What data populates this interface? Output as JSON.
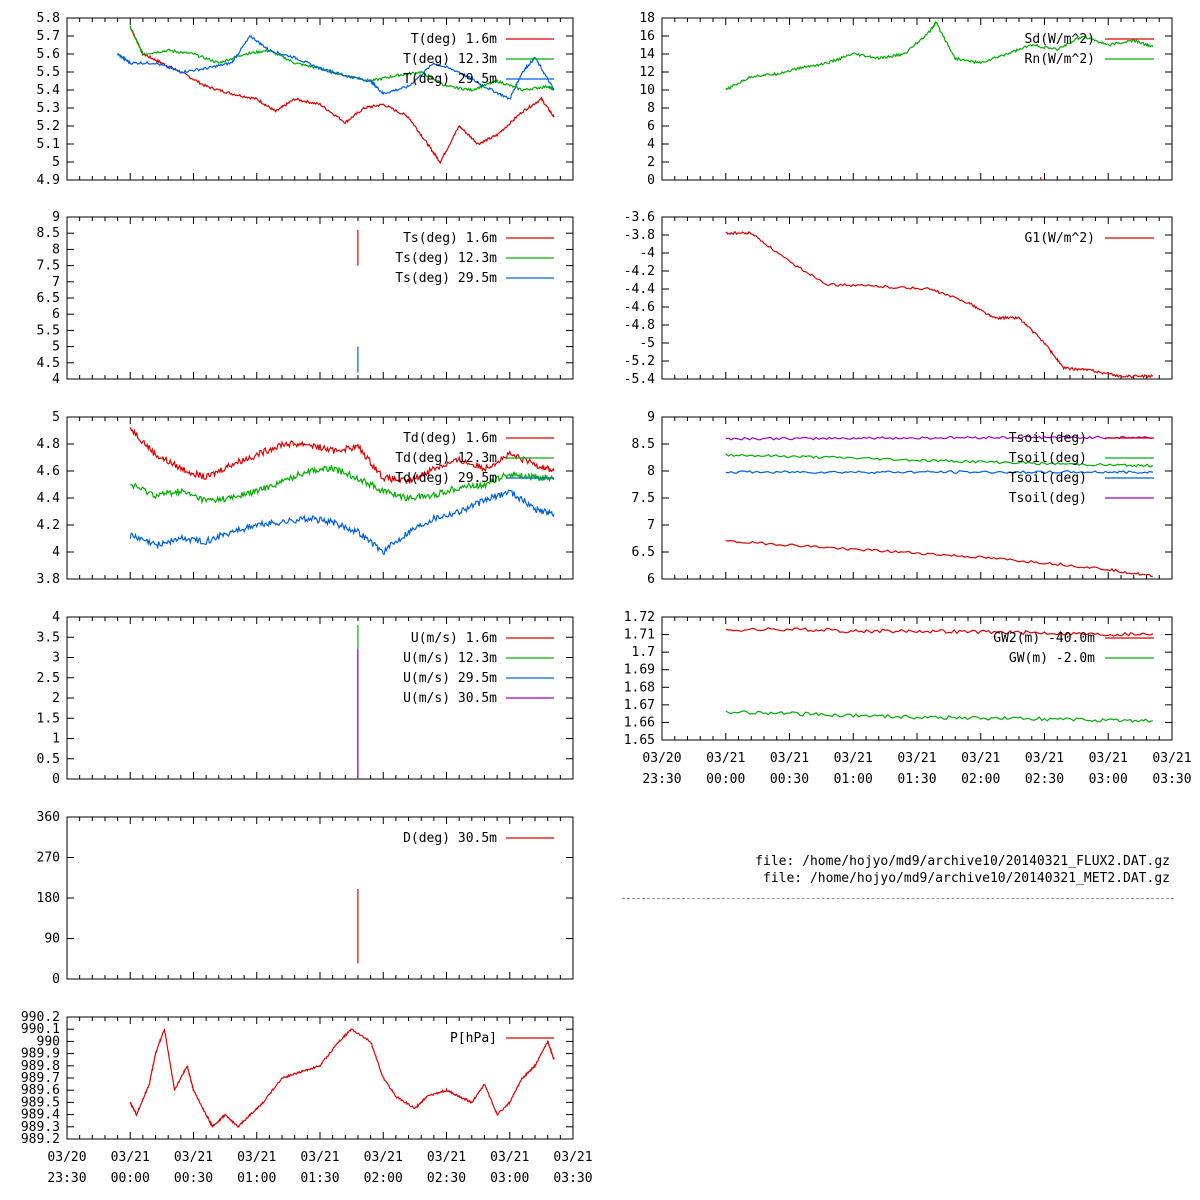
{
  "chart_data": [
    {
      "type": "line",
      "ylim": [
        4.9,
        5.8
      ],
      "yticks": [
        "4.9",
        "5",
        "5.1",
        "5.2",
        "5.3",
        "5.4",
        "5.5",
        "5.6",
        "5.7",
        "5.8"
      ],
      "xlim": [
        -0.5,
        3.5
      ],
      "series": [
        {
          "name": "T(deg)  1.6m",
          "color": "#e00000",
          "x": [
            0,
            0.1,
            0.25,
            0.4,
            0.6,
            0.8,
            1.0,
            1.15,
            1.3,
            1.5,
            1.7,
            1.85,
            2.0,
            2.2,
            2.35,
            2.45,
            2.6,
            2.75,
            2.9,
            3.1,
            3.25,
            3.35
          ],
          "y": [
            5.75,
            5.6,
            5.55,
            5.5,
            5.42,
            5.38,
            5.35,
            5.28,
            5.35,
            5.32,
            5.22,
            5.3,
            5.32,
            5.25,
            5.1,
            5.0,
            5.2,
            5.1,
            5.15,
            5.28,
            5.35,
            5.25
          ]
        },
        {
          "name": "T(deg) 12.3m",
          "color": "#00b000",
          "x": [
            0,
            0.1,
            0.3,
            0.5,
            0.7,
            0.9,
            1.1,
            1.3,
            1.5,
            1.7,
            1.9,
            2.1,
            2.3,
            2.5,
            2.7,
            2.9,
            3.1,
            3.3,
            3.35
          ],
          "y": [
            5.75,
            5.6,
            5.62,
            5.6,
            5.55,
            5.6,
            5.62,
            5.55,
            5.52,
            5.48,
            5.45,
            5.48,
            5.5,
            5.42,
            5.4,
            5.45,
            5.4,
            5.42,
            5.4
          ]
        },
        {
          "name": "T(deg) 29.5m",
          "color": "#0060e0",
          "x": [
            -0.1,
            0.0,
            0.2,
            0.4,
            0.6,
            0.8,
            0.95,
            1.1,
            1.3,
            1.5,
            1.7,
            1.9,
            2.0,
            2.2,
            2.4,
            2.6,
            2.8,
            3.0,
            3.1,
            3.2,
            3.35
          ],
          "y": [
            5.6,
            5.55,
            5.55,
            5.5,
            5.52,
            5.55,
            5.7,
            5.62,
            5.58,
            5.52,
            5.48,
            5.45,
            5.38,
            5.42,
            5.55,
            5.5,
            5.42,
            5.35,
            5.5,
            5.58,
            5.4
          ]
        }
      ]
    },
    {
      "type": "line",
      "ylim": [
        0,
        18
      ],
      "yticks": [
        "0",
        "2",
        "4",
        "6",
        "8",
        "10",
        "12",
        "14",
        "16",
        "18"
      ],
      "xlim": [
        -0.5,
        3.5
      ],
      "series": [
        {
          "name": "Sd(W/m^2)",
          "color": "#e00000",
          "x": [
            2.47,
            2.47
          ],
          "y": [
            0,
            0.3
          ]
        },
        {
          "name": "Rn(W/m^2)",
          "color": "#00b000",
          "x": [
            0,
            0.2,
            0.4,
            0.6,
            0.8,
            1.0,
            1.2,
            1.4,
            1.6,
            1.65,
            1.8,
            2.0,
            2.2,
            2.4,
            2.6,
            2.8,
            3.0,
            3.2,
            3.35
          ],
          "y": [
            10,
            11.5,
            11.8,
            12.5,
            13,
            14,
            13.5,
            14,
            16.5,
            17.5,
            13.5,
            13,
            14,
            15,
            14.5,
            16,
            15,
            15.5,
            14.8
          ]
        }
      ]
    },
    {
      "type": "line",
      "ylim": [
        4,
        9
      ],
      "yticks": [
        "4",
        "4.5",
        "5",
        "5.5",
        "6",
        "6.5",
        "7",
        "7.5",
        "8",
        "8.5",
        "9"
      ],
      "xlim": [
        -0.5,
        3.5
      ],
      "series": [
        {
          "name": "Ts(deg)  1.6m",
          "color": "#e00000",
          "x": [
            1.8,
            1.8
          ],
          "y": [
            7.5,
            8.6
          ]
        },
        {
          "name": "Ts(deg) 12.3m",
          "color": "#00b000",
          "x": [],
          "y": []
        },
        {
          "name": "Ts(deg) 29.5m",
          "color": "#0060e0",
          "x": [
            1.8,
            1.8
          ],
          "y": [
            4.2,
            5.0
          ]
        }
      ]
    },
    {
      "type": "line",
      "ylim": [
        -5.4,
        -3.6
      ],
      "yticks": [
        "-5.4",
        "-5.2",
        "-5",
        "-4.8",
        "-4.6",
        "-4.4",
        "-4.2",
        "-4",
        "-3.8",
        "-3.6"
      ],
      "xlim": [
        -0.5,
        3.5
      ],
      "series": [
        {
          "name": "G1(W/m^2)",
          "color": "#e00000",
          "x": [
            0,
            0.2,
            0.5,
            0.8,
            1.2,
            1.6,
            1.9,
            2.1,
            2.3,
            2.5,
            2.65,
            2.85,
            3.1,
            3.35
          ],
          "y": [
            -3.78,
            -3.78,
            -4.1,
            -4.35,
            -4.37,
            -4.4,
            -4.55,
            -4.72,
            -4.72,
            -5.0,
            -5.28,
            -5.3,
            -5.37,
            -5.37
          ]
        }
      ]
    },
    {
      "type": "line",
      "ylim": [
        3.8,
        5
      ],
      "yticks": [
        "3.8",
        "4",
        "4.2",
        "4.4",
        "4.6",
        "4.8",
        "5"
      ],
      "xlim": [
        -0.5,
        3.5
      ],
      "series": [
        {
          "name": "Td(deg)  1.6m",
          "color": "#e00000",
          "x": [
            0,
            0.2,
            0.4,
            0.6,
            0.8,
            1.0,
            1.2,
            1.4,
            1.6,
            1.8,
            2.0,
            2.2,
            2.4,
            2.6,
            2.8,
            3.0,
            3.2,
            3.35
          ],
          "y": [
            4.92,
            4.72,
            4.62,
            4.55,
            4.65,
            4.72,
            4.8,
            4.8,
            4.75,
            4.78,
            4.55,
            4.52,
            4.62,
            4.68,
            4.62,
            4.72,
            4.65,
            4.6
          ]
        },
        {
          "name": "Td(deg) 12.3m",
          "color": "#00b000",
          "x": [
            0,
            0.2,
            0.4,
            0.6,
            0.8,
            1.0,
            1.2,
            1.4,
            1.6,
            1.8,
            2.0,
            2.2,
            2.4,
            2.6,
            2.8,
            3.0,
            3.2,
            3.35
          ],
          "y": [
            4.5,
            4.42,
            4.45,
            4.38,
            4.4,
            4.45,
            4.52,
            4.6,
            4.62,
            4.55,
            4.45,
            4.4,
            4.42,
            4.48,
            4.5,
            4.58,
            4.55,
            4.55
          ]
        },
        {
          "name": "Td(deg) 29.5m",
          "color": "#0060e0",
          "x": [
            0,
            0.2,
            0.4,
            0.6,
            0.8,
            1.0,
            1.2,
            1.4,
            1.6,
            1.8,
            2.0,
            2.2,
            2.4,
            2.6,
            2.8,
            3.0,
            3.2,
            3.35
          ],
          "y": [
            4.12,
            4.05,
            4.1,
            4.08,
            4.15,
            4.2,
            4.22,
            4.25,
            4.22,
            4.15,
            4.0,
            4.15,
            4.25,
            4.3,
            4.38,
            4.45,
            4.32,
            4.28
          ]
        }
      ]
    },
    {
      "type": "line",
      "ylim": [
        6,
        9
      ],
      "yticks": [
        "6",
        "6.5",
        "7",
        "7.5",
        "8",
        "8.5",
        "9"
      ],
      "xlim": [
        -0.5,
        3.5
      ],
      "series": [
        {
          "name": "Tsoil(deg)",
          "color": "#e00000",
          "x": [
            0,
            0.5,
            1.0,
            1.5,
            2.0,
            2.5,
            3.0,
            3.35
          ],
          "y": [
            6.7,
            6.63,
            6.55,
            6.48,
            6.4,
            6.3,
            6.18,
            6.05
          ]
        },
        {
          "name": "Tsoil(deg)",
          "color": "#00b000",
          "x": [
            0,
            0.5,
            1.0,
            1.5,
            2.0,
            2.5,
            3.0,
            3.35
          ],
          "y": [
            8.3,
            8.27,
            8.24,
            8.2,
            8.17,
            8.14,
            8.11,
            8.1
          ]
        },
        {
          "name": "Tsoil(deg)",
          "color": "#0060e0",
          "x": [
            0,
            0.5,
            1.0,
            1.5,
            2.0,
            2.5,
            3.0,
            3.35
          ],
          "y": [
            7.98,
            7.98,
            7.98,
            7.98,
            7.98,
            7.98,
            7.98,
            7.98
          ]
        },
        {
          "name": "Tsoil(deg)",
          "color": "#a000c0",
          "x": [
            0,
            0.5,
            1.0,
            1.5,
            2.0,
            2.5,
            3.0,
            3.35
          ],
          "y": [
            8.6,
            8.6,
            8.61,
            8.61,
            8.62,
            8.62,
            8.62,
            8.62
          ]
        }
      ]
    },
    {
      "type": "line",
      "ylim": [
        0,
        4
      ],
      "yticks": [
        "0",
        "0.5",
        "1",
        "1.5",
        "2",
        "2.5",
        "3",
        "3.5",
        "4"
      ],
      "xlim": [
        -0.5,
        3.5
      ],
      "series": [
        {
          "name": "U(m/s)  1.6m",
          "color": "#e00000",
          "x": [
            1.8,
            1.8
          ],
          "y": [
            0,
            0.5
          ]
        },
        {
          "name": "U(m/s) 12.3m",
          "color": "#00b000",
          "x": [
            1.8,
            1.8
          ],
          "y": [
            0.5,
            3.8
          ]
        },
        {
          "name": "U(m/s) 29.5m",
          "color": "#0060e0",
          "x": [],
          "y": []
        },
        {
          "name": "U(m/s) 30.5m",
          "color": "#a000c0",
          "x": [
            1.8,
            1.8
          ],
          "y": [
            0,
            3.2
          ]
        }
      ]
    },
    {
      "type": "line",
      "ylim": [
        1.65,
        1.72
      ],
      "yticks": [
        "1.65",
        "1.66",
        "1.67",
        "1.68",
        "1.69",
        "1.7",
        "1.71",
        "1.72"
      ],
      "xlim": [
        -0.5,
        3.5
      ],
      "xticks": [
        {
          "top": "03/20",
          "bottom": "23:30"
        },
        {
          "top": "03/21",
          "bottom": "00:00"
        },
        {
          "top": "03/21",
          "bottom": "00:30"
        },
        {
          "top": "03/21",
          "bottom": "01:00"
        },
        {
          "top": "03/21",
          "bottom": "01:30"
        },
        {
          "top": "03/21",
          "bottom": "02:00"
        },
        {
          "top": "03/21",
          "bottom": "02:30"
        },
        {
          "top": "03/21",
          "bottom": "03:00"
        },
        {
          "top": "03/21",
          "bottom": "03:30"
        }
      ],
      "series": [
        {
          "name": "GW2(m) -40.0m",
          "color": "#e00000",
          "x": [
            0,
            0.5,
            1.0,
            1.5,
            2.0,
            2.5,
            3.0,
            3.35
          ],
          "y": [
            1.7125,
            1.713,
            1.712,
            1.712,
            1.7115,
            1.711,
            1.71,
            1.7105
          ]
        },
        {
          "name": "GW(m) -2.0m",
          "color": "#00b000",
          "x": [
            0,
            0.5,
            1.0,
            1.5,
            2.0,
            2.5,
            3.0,
            3.35
          ],
          "y": [
            1.666,
            1.665,
            1.664,
            1.663,
            1.6625,
            1.662,
            1.661,
            1.661
          ]
        }
      ]
    },
    {
      "type": "line",
      "ylim": [
        0,
        360
      ],
      "yticks": [
        "0",
        "90",
        "180",
        "270",
        "360"
      ],
      "xlim": [
        -0.5,
        3.5
      ],
      "series": [
        {
          "name": "D(deg)  30.5m",
          "color": "#e00000",
          "x": [
            1.8,
            1.8
          ],
          "y": [
            35,
            200
          ]
        }
      ]
    },
    {
      "type": "line",
      "ylim": [
        989.2,
        990.2
      ],
      "yticks": [
        "989.2",
        "989.3",
        "989.4",
        "989.5",
        "989.6",
        "989.7",
        "989.8",
        "989.9",
        "990",
        "990.1",
        "990.2"
      ],
      "xlim": [
        -0.5,
        3.5
      ],
      "xticks": [
        {
          "top": "03/20",
          "bottom": "23:30"
        },
        {
          "top": "03/21",
          "bottom": "00:00"
        },
        {
          "top": "03/21",
          "bottom": "00:30"
        },
        {
          "top": "03/21",
          "bottom": "01:00"
        },
        {
          "top": "03/21",
          "bottom": "01:30"
        },
        {
          "top": "03/21",
          "bottom": "02:00"
        },
        {
          "top": "03/21",
          "bottom": "02:30"
        },
        {
          "top": "03/21",
          "bottom": "03:00"
        },
        {
          "top": "03/21",
          "bottom": "03:30"
        }
      ],
      "series": [
        {
          "name": "P[hPa]",
          "color": "#e00000",
          "x": [
            0,
            0.05,
            0.15,
            0.2,
            0.27,
            0.35,
            0.45,
            0.5,
            0.6,
            0.65,
            0.75,
            0.85,
            0.95,
            1.05,
            1.2,
            1.35,
            1.5,
            1.65,
            1.75,
            1.9,
            2.0,
            2.1,
            2.25,
            2.35,
            2.5,
            2.6,
            2.7,
            2.8,
            2.9,
            3.0,
            3.1,
            3.2,
            3.3,
            3.35
          ],
          "y": [
            989.5,
            989.4,
            989.65,
            989.9,
            990.1,
            989.6,
            989.8,
            989.6,
            989.4,
            989.3,
            989.4,
            989.3,
            989.4,
            989.5,
            989.7,
            989.75,
            989.8,
            990.0,
            990.1,
            990.0,
            989.7,
            989.55,
            989.45,
            989.55,
            989.6,
            989.55,
            989.5,
            989.65,
            989.4,
            989.5,
            989.7,
            989.8,
            990.0,
            989.85
          ]
        }
      ]
    }
  ],
  "files": {
    "flux": "file: /home/hojyo/md9/archive10/20140321_FLUX2.DAT.gz",
    "met": "file: /home/hojyo/md9/archive10/20140321_MET2.DAT.gz"
  }
}
